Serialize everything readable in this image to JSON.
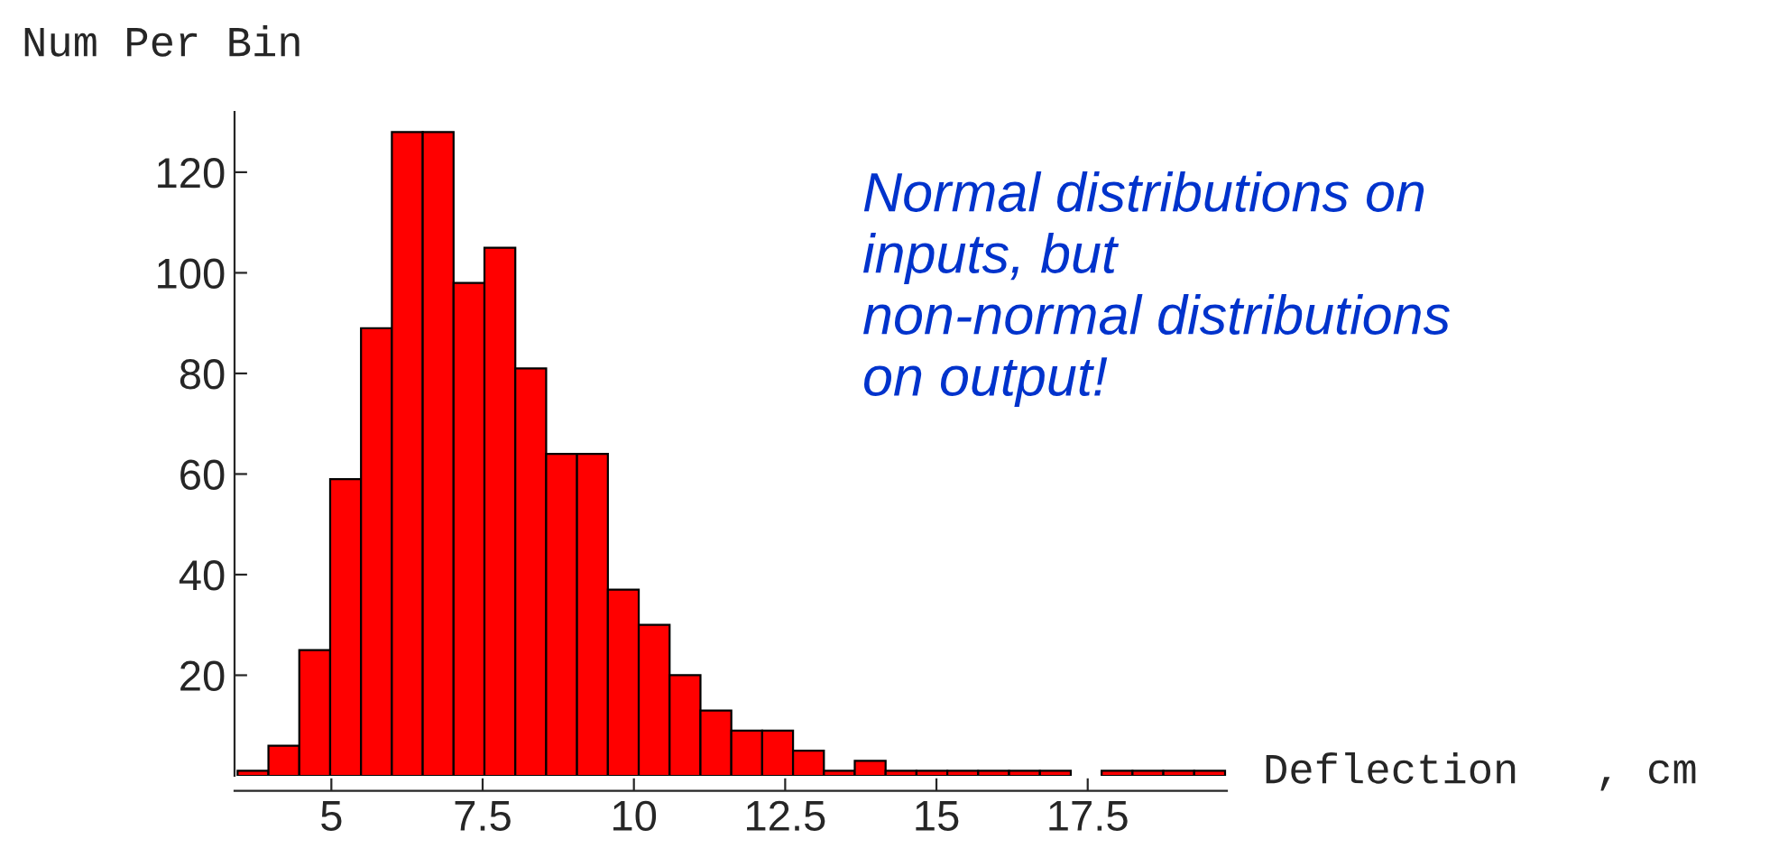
{
  "chart_data": {
    "type": "histogram",
    "ylabel": "Num Per Bin",
    "xlabel": "Deflection   , cm",
    "annotations": [
      "Normal distributions on\ninputs, but\nnon-normal distributions\non output!"
    ],
    "bins": [
      3.45,
      3.96,
      4.47,
      4.98,
      5.49,
      6.0,
      6.51,
      7.02,
      7.53,
      8.04,
      8.55,
      9.06,
      9.57,
      10.08,
      10.59,
      11.1,
      11.61,
      12.12,
      12.63,
      13.14,
      13.65,
      14.16,
      14.67,
      15.18,
      15.69,
      16.2,
      16.71,
      17.22,
      17.73,
      18.24,
      18.75,
      19.26,
      19.77
    ],
    "values": [
      1,
      6,
      25,
      59,
      89,
      128,
      128,
      98,
      105,
      81,
      64,
      64,
      37,
      30,
      20,
      13,
      9,
      9,
      5,
      1,
      3,
      1,
      1,
      1,
      1,
      1,
      1,
      0,
      1,
      1,
      1,
      1
    ],
    "color": "#ff0000",
    "xlim": [
      3.4,
      19.8
    ],
    "ylim": [
      0,
      132
    ],
    "xticks": [
      5,
      {
        "value": 7.5,
        "label": "7.5"
      },
      10,
      {
        "value": 12.5,
        "label": "12.5"
      },
      15,
      {
        "value": 17.5,
        "label": "17.5"
      }
    ],
    "yticks": [
      20,
      40,
      60,
      80,
      100,
      120
    ],
    "grid": false
  }
}
